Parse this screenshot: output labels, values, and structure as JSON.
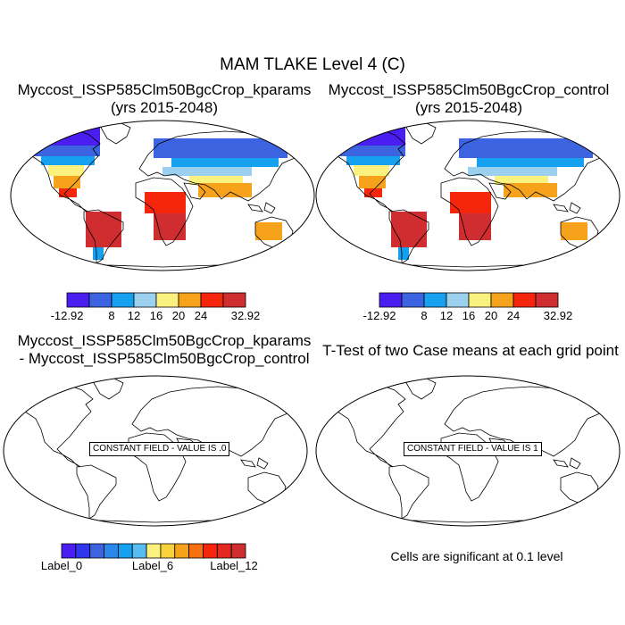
{
  "title": "MAM TLAKE Level 4 (C)",
  "panels": [
    {
      "title_line1": "Myccost_ISSP585Clm50BgcCrop_kparams",
      "title_line2": "(yrs 2015-2048)"
    },
    {
      "title_line1": "Myccost_ISSP585Clm50BgcCrop_control",
      "title_line2": "(yrs 2015-2048)"
    },
    {
      "title_line1": "Myccost_ISSP585Clm50BgcCrop_kparams",
      "title_line2": "- Myccost_ISSP585Clm50BgcCrop_control"
    },
    {
      "title_line1": "T-Test of two Case means at each grid point"
    }
  ],
  "colorbar_top": {
    "colors": [
      "#4a1ef0",
      "#3c64e0",
      "#15a0f0",
      "#9bd0ef",
      "#fbf17e",
      "#f6a21b",
      "#f6260d",
      "#cf2d30"
    ],
    "labels": [
      "-12.92",
      "8",
      "12",
      "16",
      "20",
      "24",
      "32.92"
    ]
  },
  "colorbar_bottom": {
    "colors": [
      "#4a1ef0",
      "#2f36ee",
      "#3c64e0",
      "#2a88ea",
      "#15a0f0",
      "#58bcf2",
      "#fbf17e",
      "#f8d23a",
      "#f6a21b",
      "#f6700f",
      "#f6260d",
      "#e22920",
      "#cf2d30"
    ],
    "labels": [
      "Label_0",
      "Label_6",
      "Label_12"
    ]
  },
  "constant_text": {
    "difference": "CONSTANT FIELD - VALUE IS .0",
    "ttest": "CONSTANT FIELD - VALUE IS 1"
  },
  "footnote": "Cells are significant at 0.1 level"
}
